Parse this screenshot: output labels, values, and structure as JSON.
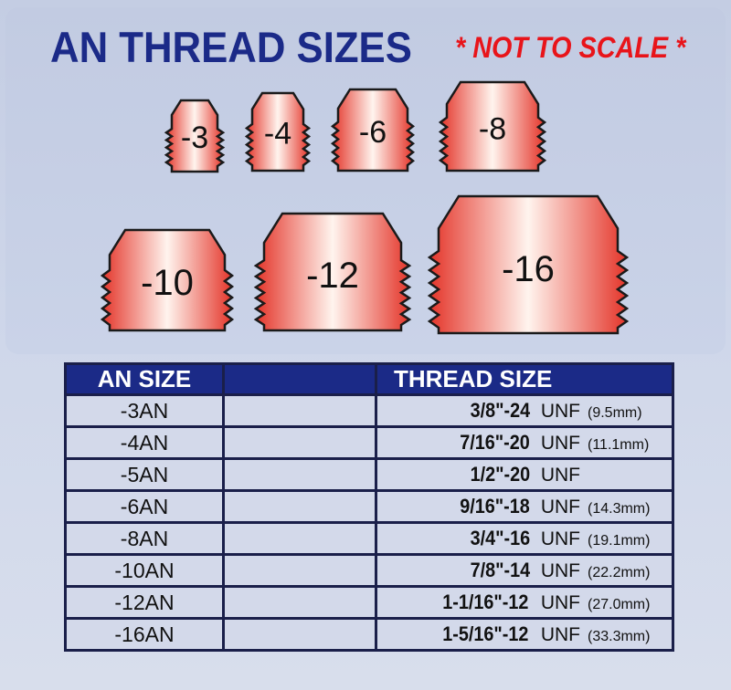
{
  "title": "AN THREAD SIZES",
  "note": "* NOT TO SCALE *",
  "colors": {
    "title": "#1b2a88",
    "note": "#e8141a",
    "header_bg": "#1b2a87",
    "fitting": "#e8503a"
  },
  "fittings": [
    "-3",
    "-4",
    "-6",
    "-8",
    "-10",
    "-12",
    "-16"
  ],
  "table": {
    "headers": [
      "AN SIZE",
      "",
      "THREAD SIZE"
    ],
    "rows": [
      {
        "an": "-3AN",
        "thread": "3/8\"-24",
        "unf": "UNF",
        "mm": "(9.5mm)"
      },
      {
        "an": "-4AN",
        "thread": "7/16\"-20",
        "unf": "UNF",
        "mm": "(11.1mm)"
      },
      {
        "an": "-5AN",
        "thread": "1/2\"-20",
        "unf": "UNF",
        "mm": ""
      },
      {
        "an": "-6AN",
        "thread": "9/16\"-18",
        "unf": "UNF",
        "mm": "(14.3mm)"
      },
      {
        "an": "-8AN",
        "thread": "3/4\"-16",
        "unf": "UNF",
        "mm": "(19.1mm)"
      },
      {
        "an": "-10AN",
        "thread": "7/8\"-14",
        "unf": "UNF",
        "mm": "(22.2mm)"
      },
      {
        "an": "-12AN",
        "thread": "1-1/16\"-12",
        "unf": "UNF",
        "mm": "(27.0mm)"
      },
      {
        "an": "-16AN",
        "thread": "1-5/16\"-12",
        "unf": "UNF",
        "mm": "(33.3mm)"
      }
    ]
  }
}
